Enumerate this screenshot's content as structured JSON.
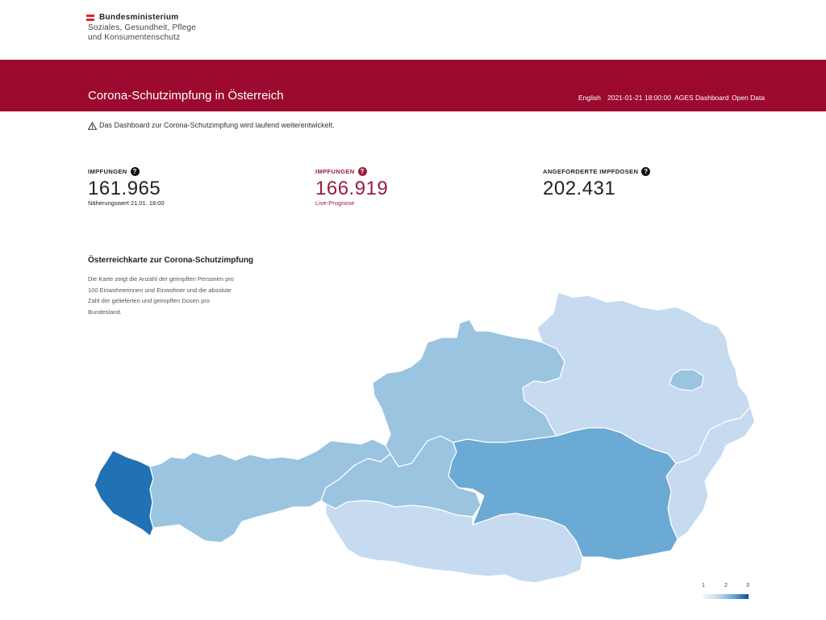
{
  "logo": {
    "title": "Bundesministerium",
    "line1": "Soziales, Gesundheit, Pflege",
    "line2": "und Konsumentenschutz"
  },
  "header": {
    "title": "Corona-Schutzimpfung in Österreich",
    "nav": {
      "english": "English",
      "timestamp": "2021-01-21 18:00:00",
      "ages": "AGES Dashboard",
      "open_data": "Open Data"
    }
  },
  "notice": "Das Dashboard zur Corona-Schutzimpfung wird laufend weiterentwickelt.",
  "kpis": [
    {
      "label": "IMPFUNGEN",
      "value": "161.965",
      "sub": "Näherungswert 21.01. 18:00"
    },
    {
      "label": "IMPFUNGEN",
      "value": "166.919",
      "sub": "Live-Prognose"
    },
    {
      "label": "ANGEFORDERTE IMPFDOSEN",
      "value": "202.431",
      "sub": ""
    }
  ],
  "map": {
    "title": "Österreichkarte zur Corona-Schutzimpfung",
    "description": "Die Karte zeigt die Anzahl der geimpften Personen pro 100 Einwohnerinnen und Einwohner und die absolute Zahl der gelieferten und geimpften Dosen pro Bundesland.",
    "legend": {
      "min": "1",
      "mid": "2",
      "max": "3"
    }
  },
  "colors": {
    "brand_red": "#9b0a2e",
    "accent_text": "#9b1c3c",
    "flag_red": "#e4202c",
    "map_lightest": "#c6dbef",
    "map_light": "#a6cae3",
    "map_mid": "#9bc4e0",
    "map_medium": "#6aaad4",
    "map_dark": "#2171b5",
    "map_border": "#ffffff"
  }
}
